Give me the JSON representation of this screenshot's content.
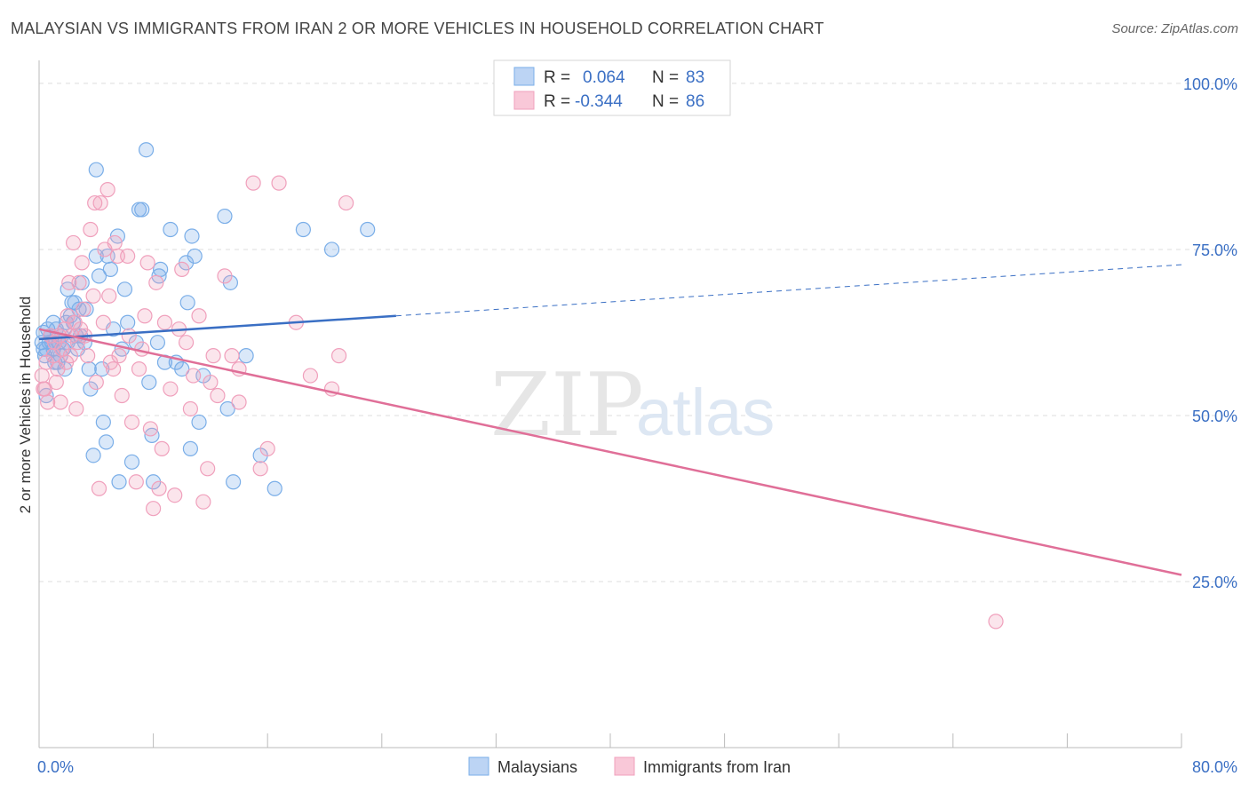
{
  "title": "MALAYSIAN VS IMMIGRANTS FROM IRAN 2 OR MORE VEHICLES IN HOUSEHOLD CORRELATION CHART",
  "source": "Source: ZipAtlas.com",
  "watermark": {
    "zip": "ZIP",
    "atlas": "atlas"
  },
  "legend_top": {
    "rows": [
      {
        "r_label": "R =",
        "r_value": "0.064",
        "n_label": "N =",
        "n_value": "83"
      },
      {
        "r_label": "R =",
        "r_value": "-0.344",
        "n_label": "N =",
        "n_value": "86"
      }
    ]
  },
  "legend_bottom": {
    "items": [
      "Malaysians",
      "Immigrants from Iran"
    ]
  },
  "chart_data": {
    "type": "scatter",
    "title": "MALAYSIAN VS IMMIGRANTS FROM IRAN 2 OR MORE VEHICLES IN HOUSEHOLD CORRELATION CHART",
    "xlabel": "",
    "ylabel": "2 or more Vehicles in Household",
    "xlim": [
      0,
      80
    ],
    "ylim": [
      0,
      104
    ],
    "x_tick_labels": [
      "0.0%",
      "80.0%"
    ],
    "y_tick_labels": [
      "25.0%",
      "50.0%",
      "75.0%",
      "100.0%"
    ],
    "y_ticks": [
      25,
      50,
      75,
      100
    ],
    "grid": true,
    "colors": {
      "blue": "#7aaee8",
      "blue_line": "#3a6fc4",
      "pink": "#f0a0bc",
      "pink_line": "#e06f98"
    },
    "series": [
      {
        "name": "Malaysians",
        "color": "#7aaee8",
        "trend": {
          "x": [
            0,
            25
          ],
          "y": [
            61.5,
            65
          ]
        },
        "trend_dashed": {
          "x": [
            25,
            80
          ],
          "y": [
            65,
            72.7
          ]
        },
        "points": [
          [
            0.2,
            61
          ],
          [
            0.3,
            62.5
          ],
          [
            0.4,
            59
          ],
          [
            0.5,
            60
          ],
          [
            0.5,
            53
          ],
          [
            0.6,
            63
          ],
          [
            0.7,
            61
          ],
          [
            0.8,
            62
          ],
          [
            0.9,
            61
          ],
          [
            1,
            60
          ],
          [
            1,
            64
          ],
          [
            1.2,
            63
          ],
          [
            1.3,
            58
          ],
          [
            1.4,
            61
          ],
          [
            1.5,
            59
          ],
          [
            1.6,
            62
          ],
          [
            1.7,
            60
          ],
          [
            1.8,
            57
          ],
          [
            1.9,
            64
          ],
          [
            2,
            61
          ],
          [
            2,
            69
          ],
          [
            2.2,
            65
          ],
          [
            2.3,
            67
          ],
          [
            2.4,
            64
          ],
          [
            2.5,
            67
          ],
          [
            2.6,
            62
          ],
          [
            2.7,
            60
          ],
          [
            2.8,
            66
          ],
          [
            3,
            70
          ],
          [
            3.2,
            61
          ],
          [
            3.3,
            66
          ],
          [
            3.5,
            57
          ],
          [
            3.6,
            54
          ],
          [
            3.8,
            44
          ],
          [
            4,
            74
          ],
          [
            4,
            87
          ],
          [
            4.2,
            71
          ],
          [
            4.4,
            57
          ],
          [
            4.5,
            49
          ],
          [
            4.7,
            46
          ],
          [
            4.8,
            74
          ],
          [
            5,
            72
          ],
          [
            5.2,
            63
          ],
          [
            5.5,
            77
          ],
          [
            5.6,
            40
          ],
          [
            5.8,
            60
          ],
          [
            6,
            69
          ],
          [
            6.2,
            64
          ],
          [
            6.5,
            43
          ],
          [
            6.8,
            61
          ],
          [
            7,
            81
          ],
          [
            7.2,
            81
          ],
          [
            7.5,
            90
          ],
          [
            7.7,
            55
          ],
          [
            7.9,
            47
          ],
          [
            8,
            40
          ],
          [
            8.3,
            61
          ],
          [
            8.4,
            71
          ],
          [
            8.5,
            72
          ],
          [
            8.8,
            58
          ],
          [
            9.2,
            78
          ],
          [
            9.6,
            58
          ],
          [
            10,
            57
          ],
          [
            10.3,
            73
          ],
          [
            10.4,
            67
          ],
          [
            10.6,
            45
          ],
          [
            10.7,
            77
          ],
          [
            10.9,
            74
          ],
          [
            11.2,
            49
          ],
          [
            11.5,
            56
          ],
          [
            13,
            80
          ],
          [
            13.2,
            51
          ],
          [
            13.4,
            70
          ],
          [
            13.6,
            40
          ],
          [
            14.5,
            59
          ],
          [
            15.5,
            44
          ],
          [
            16.5,
            39
          ],
          [
            18.5,
            78
          ],
          [
            20.5,
            75
          ],
          [
            23,
            78
          ],
          [
            0.3,
            60
          ],
          [
            1.1,
            58
          ],
          [
            2.9,
            62
          ]
        ]
      },
      {
        "name": "Immigrants from Iran",
        "color": "#f0a0bc",
        "trend": {
          "x": [
            0,
            80
          ],
          "y": [
            63,
            26
          ]
        },
        "points": [
          [
            0.2,
            56
          ],
          [
            0.4,
            54
          ],
          [
            0.5,
            58
          ],
          [
            0.6,
            52
          ],
          [
            0.8,
            62
          ],
          [
            1,
            59
          ],
          [
            1.1,
            61
          ],
          [
            1.2,
            55
          ],
          [
            1.4,
            62
          ],
          [
            1.5,
            52
          ],
          [
            1.6,
            60
          ],
          [
            1.8,
            63
          ],
          [
            1.9,
            58
          ],
          [
            2,
            65
          ],
          [
            2.1,
            70
          ],
          [
            2.2,
            59
          ],
          [
            2.3,
            62
          ],
          [
            2.4,
            76
          ],
          [
            2.5,
            64
          ],
          [
            2.6,
            51
          ],
          [
            2.8,
            70
          ],
          [
            2.9,
            63
          ],
          [
            3,
            73
          ],
          [
            3.1,
            66
          ],
          [
            3.2,
            62
          ],
          [
            3.4,
            59
          ],
          [
            3.6,
            78
          ],
          [
            3.8,
            68
          ],
          [
            3.9,
            82
          ],
          [
            4,
            55
          ],
          [
            4.2,
            39
          ],
          [
            4.3,
            82
          ],
          [
            4.5,
            64
          ],
          [
            4.6,
            75
          ],
          [
            4.8,
            84
          ],
          [
            4.9,
            68
          ],
          [
            5,
            58
          ],
          [
            5.2,
            57
          ],
          [
            5.3,
            76
          ],
          [
            5.5,
            74
          ],
          [
            5.6,
            59
          ],
          [
            5.8,
            53
          ],
          [
            6.2,
            74
          ],
          [
            6.3,
            62
          ],
          [
            6.5,
            49
          ],
          [
            6.8,
            40
          ],
          [
            7,
            57
          ],
          [
            7.2,
            60
          ],
          [
            7.4,
            65
          ],
          [
            7.6,
            73
          ],
          [
            7.8,
            48
          ],
          [
            8,
            36
          ],
          [
            8.2,
            70
          ],
          [
            8.4,
            39
          ],
          [
            8.6,
            45
          ],
          [
            8.8,
            64
          ],
          [
            9.2,
            54
          ],
          [
            9.5,
            38
          ],
          [
            9.8,
            63
          ],
          [
            10,
            72
          ],
          [
            10.3,
            61
          ],
          [
            10.6,
            51
          ],
          [
            10.8,
            56
          ],
          [
            11.2,
            65
          ],
          [
            11.5,
            37
          ],
          [
            11.8,
            42
          ],
          [
            12,
            55
          ],
          [
            12.2,
            59
          ],
          [
            12.5,
            53
          ],
          [
            13,
            71
          ],
          [
            13.5,
            59
          ],
          [
            14,
            52
          ],
          [
            14,
            57
          ],
          [
            15,
            85
          ],
          [
            15.5,
            42
          ],
          [
            16,
            45
          ],
          [
            16.8,
            85
          ],
          [
            18,
            64
          ],
          [
            19,
            56
          ],
          [
            20.5,
            54
          ],
          [
            21,
            59
          ],
          [
            21.5,
            82
          ],
          [
            0.3,
            54
          ],
          [
            1.3,
            57
          ],
          [
            2.7,
            61
          ],
          [
            67,
            19
          ]
        ]
      }
    ]
  }
}
